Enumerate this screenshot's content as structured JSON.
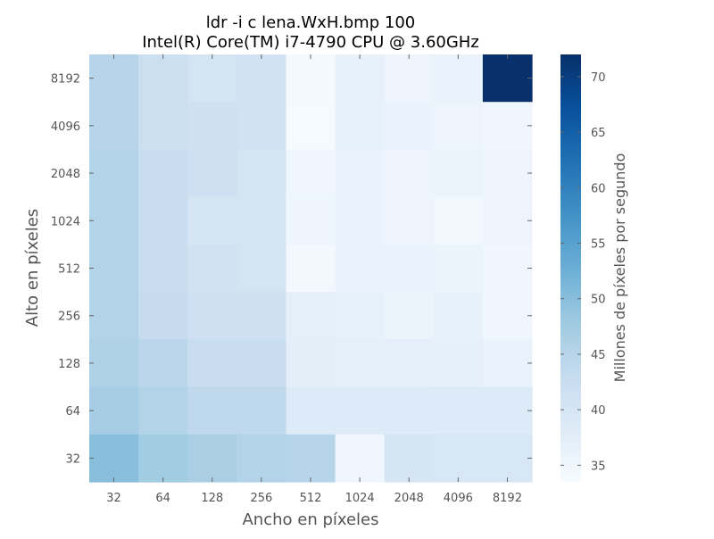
{
  "chart_data": {
    "type": "heatmap",
    "title_lines": [
      "ldr -i c lena.WxH.bmp 100",
      "Intel(R) Core(TM) i7-4790 CPU @ 3.60GHz"
    ],
    "xlabel": "Ancho en píxeles",
    "ylabel": "Alto en píxeles",
    "x_categories": [
      "32",
      "64",
      "128",
      "256",
      "512",
      "1024",
      "2048",
      "4096",
      "8192"
    ],
    "y_categories": [
      "8192",
      "4096",
      "2048",
      "1024",
      "512",
      "256",
      "128",
      "64",
      "32"
    ],
    "values": [
      [
        45.0,
        42.0,
        40.5,
        41.0,
        34.0,
        36.5,
        35.5,
        36.0,
        72.0
      ],
      [
        45.0,
        42.0,
        41.5,
        41.0,
        33.8,
        36.5,
        36.0,
        35.5,
        35.0
      ],
      [
        45.5,
        42.5,
        41.5,
        40.5,
        35.0,
        36.0,
        35.5,
        35.8,
        35.2
      ],
      [
        45.5,
        42.5,
        40.0,
        40.5,
        35.2,
        36.0,
        35.5,
        34.8,
        35.5
      ],
      [
        45.5,
        42.5,
        41.0,
        40.5,
        34.5,
        36.0,
        36.0,
        35.8,
        35.0
      ],
      [
        45.5,
        43.0,
        41.5,
        41.5,
        37.0,
        36.5,
        35.8,
        36.5,
        35.0
      ],
      [
        46.0,
        44.5,
        42.5,
        42.5,
        37.5,
        37.0,
        37.0,
        36.8,
        36.0
      ],
      [
        47.0,
        45.5,
        44.0,
        44.0,
        38.5,
        38.5,
        38.5,
        38.5,
        38.5
      ],
      [
        50.0,
        47.5,
        46.5,
        45.5,
        45.0,
        35.0,
        40.0,
        39.5,
        39.5
      ]
    ],
    "colorbar": {
      "label": "Millones de píxeles por segundo",
      "min": 33.5,
      "max": 72.0,
      "ticks": [
        "35",
        "40",
        "45",
        "50",
        "55",
        "60",
        "65",
        "70"
      ],
      "colormap": "Blues"
    }
  }
}
